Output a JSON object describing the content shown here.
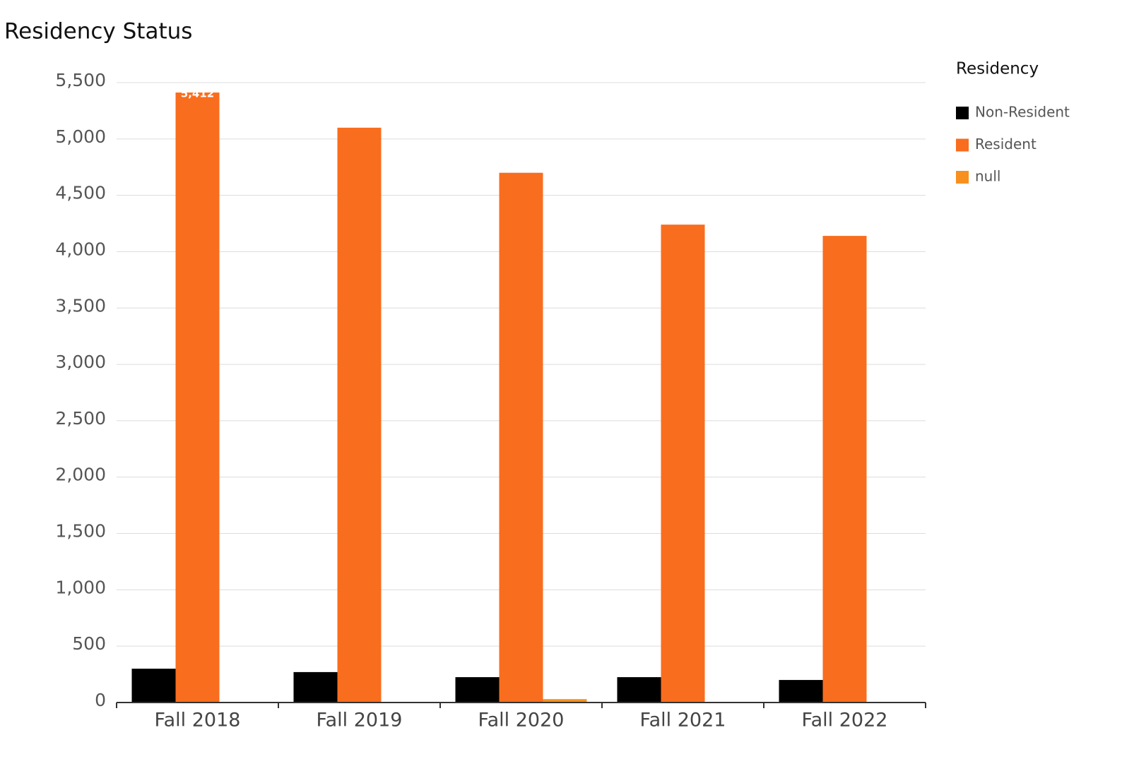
{
  "chart_data": {
    "type": "bar",
    "title": "Residency Status",
    "categories": [
      "Fall 2018",
      "Fall 2019",
      "Fall 2020",
      "Fall 2021",
      "Fall 2022"
    ],
    "series": [
      {
        "name": "Non-Resident",
        "color": "#000000",
        "values": [
          300,
          270,
          225,
          225,
          200
        ]
      },
      {
        "name": "Resident",
        "color": "#f96d1e",
        "values": [
          5412,
          5100,
          4700,
          4240,
          4140
        ],
        "value_labels": [
          "5,412",
          null,
          null,
          null,
          null
        ]
      },
      {
        "name": "null",
        "color": "#f7901e",
        "values": [
          null,
          null,
          30,
          null,
          null
        ]
      }
    ],
    "legend_title": "Residency",
    "legend_position": "right",
    "ylim": [
      0,
      5500
    ],
    "yticks": [
      0,
      500,
      {
        "value": 1000,
        "label": "1,000"
      },
      {
        "value": 1500,
        "label": "1,500"
      },
      {
        "value": 2000,
        "label": "2,000"
      },
      {
        "value": 2500,
        "label": "2,500"
      },
      {
        "value": 3000,
        "label": "3,000"
      },
      {
        "value": 3500,
        "label": "3,500"
      },
      {
        "value": 4000,
        "label": "4,000"
      },
      {
        "value": 4500,
        "label": "4,500"
      },
      {
        "value": 5000,
        "label": "5,000"
      },
      {
        "value": 5500,
        "label": "5,500"
      }
    ],
    "grid": true
  }
}
